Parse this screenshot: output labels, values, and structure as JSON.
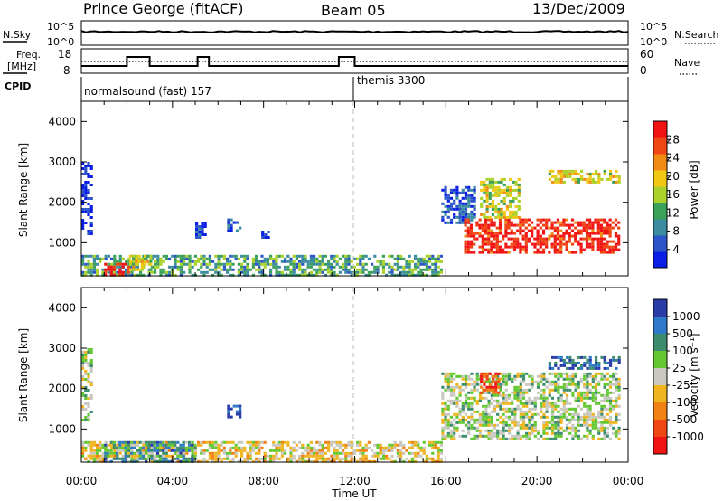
{
  "header": {
    "station": "Prince George (fitACF)",
    "beam": "Beam 05",
    "date": "13/Dec/2009"
  },
  "noise_panel": {
    "left_label": "N.Sky",
    "right_label": "N.Search",
    "left_ticks": [
      "10^5",
      "10^0"
    ],
    "right_ticks": [
      "10^5",
      "10^0"
    ]
  },
  "freq_panel": {
    "left_label_line1": "Freq.",
    "left_label_line2": "[MHz]",
    "left_ticks": [
      "18",
      "8"
    ],
    "right_label": "Nave",
    "right_ticks": [
      "60",
      "0"
    ]
  },
  "cpid": {
    "label": "CPID",
    "segments": [
      {
        "name": "normalsound (fast) 157",
        "start_hour": 0,
        "end_hour": 12
      },
      {
        "name": "themis 3300",
        "start_hour": 12,
        "end_hour": 24
      }
    ]
  },
  "colors": {
    "power": [
      "#0a1ee6",
      "#2c55c8",
      "#3c8ca0",
      "#3aa05a",
      "#aad22a",
      "#f0c814",
      "#f08c14",
      "#f04614",
      "#f01414"
    ],
    "velocity": [
      "#2a3ca8",
      "#2e7ac8",
      "#3c8c6e",
      "#64c832",
      "#c8c8c0",
      "#f0b41e",
      "#f08214",
      "#f04614",
      "#f01414"
    ]
  },
  "chart_data": [
    {
      "type": "heatmap",
      "title": "Power",
      "ylabel": "Slant Range [km]",
      "xlabel": "Time UT",
      "x_range_hours": [
        0,
        24
      ],
      "ylim": [
        180,
        4500
      ],
      "x_ticks": [
        "00:00",
        "04:00",
        "08:00",
        "12:00",
        "16:00",
        "20:00",
        "00:00"
      ],
      "y_ticks": [
        1000,
        2000,
        3000,
        4000
      ],
      "colorbar": {
        "label": "Power [dB]",
        "range": [
          0,
          32
        ],
        "ticks": [
          4,
          8,
          12,
          16,
          20,
          24,
          28
        ]
      },
      "echo_regions": [
        {
          "t0": 0.0,
          "t1": 15.8,
          "r0": 180,
          "r1": 700,
          "level": 0.35
        },
        {
          "t0": 1.0,
          "t1": 2.1,
          "r0": 180,
          "r1": 500,
          "level": 0.95
        },
        {
          "t0": 2.1,
          "t1": 3.0,
          "r0": 300,
          "r1": 700,
          "level": 0.55
        },
        {
          "t0": 0.0,
          "t1": 0.4,
          "r0": 1200,
          "r1": 3000,
          "level": 0.05
        },
        {
          "t0": 5.0,
          "t1": 5.4,
          "r0": 1100,
          "r1": 1500,
          "level": 0.08
        },
        {
          "t0": 6.4,
          "t1": 7.0,
          "r0": 1300,
          "r1": 1600,
          "level": 0.08
        },
        {
          "t0": 7.9,
          "t1": 8.2,
          "r0": 1100,
          "r1": 1300,
          "level": 0.08
        },
        {
          "t0": 15.8,
          "t1": 17.2,
          "r0": 1500,
          "r1": 2400,
          "level": 0.15
        },
        {
          "t0": 16.8,
          "t1": 23.6,
          "r0": 750,
          "r1": 1600,
          "level": 0.93
        },
        {
          "t0": 17.5,
          "t1": 19.2,
          "r0": 1600,
          "r1": 2600,
          "level": 0.55
        },
        {
          "t0": 20.5,
          "t1": 23.6,
          "r0": 2500,
          "r1": 2800,
          "level": 0.6
        }
      ]
    },
    {
      "type": "heatmap",
      "title": "Velocity",
      "ylabel": "Slant Range [km]",
      "xlabel": "Time UT",
      "x_range_hours": [
        0,
        24
      ],
      "ylim": [
        180,
        4500
      ],
      "x_ticks": [
        "00:00",
        "04:00",
        "08:00",
        "12:00",
        "16:00",
        "20:00",
        "00:00"
      ],
      "y_ticks": [
        1000,
        2000,
        3000,
        4000
      ],
      "colorbar": {
        "label": "Velocity [m s⁻¹]",
        "ticks": [
          "1000",
          "500",
          "100",
          "25",
          "-25",
          "-100",
          "-500",
          "-1000"
        ]
      },
      "echo_regions": [
        {
          "t0": 0.0,
          "t1": 15.8,
          "r0": 180,
          "r1": 700,
          "level": 0.55
        },
        {
          "t0": 1.0,
          "t1": 5.0,
          "r0": 180,
          "r1": 700,
          "level": 0.25
        },
        {
          "t0": 0.0,
          "t1": 0.4,
          "r0": 1200,
          "r1": 3000,
          "level": 0.45
        },
        {
          "t0": 6.4,
          "t1": 7.0,
          "r0": 1300,
          "r1": 1600,
          "level": 0.1
        },
        {
          "t0": 15.8,
          "t1": 23.6,
          "r0": 750,
          "r1": 2400,
          "level": 0.45
        },
        {
          "t0": 17.5,
          "t1": 18.3,
          "r0": 1900,
          "r1": 2400,
          "level": 0.85
        },
        {
          "t0": 20.5,
          "t1": 23.6,
          "r0": 2500,
          "r1": 2800,
          "level": 0.15
        }
      ]
    }
  ]
}
